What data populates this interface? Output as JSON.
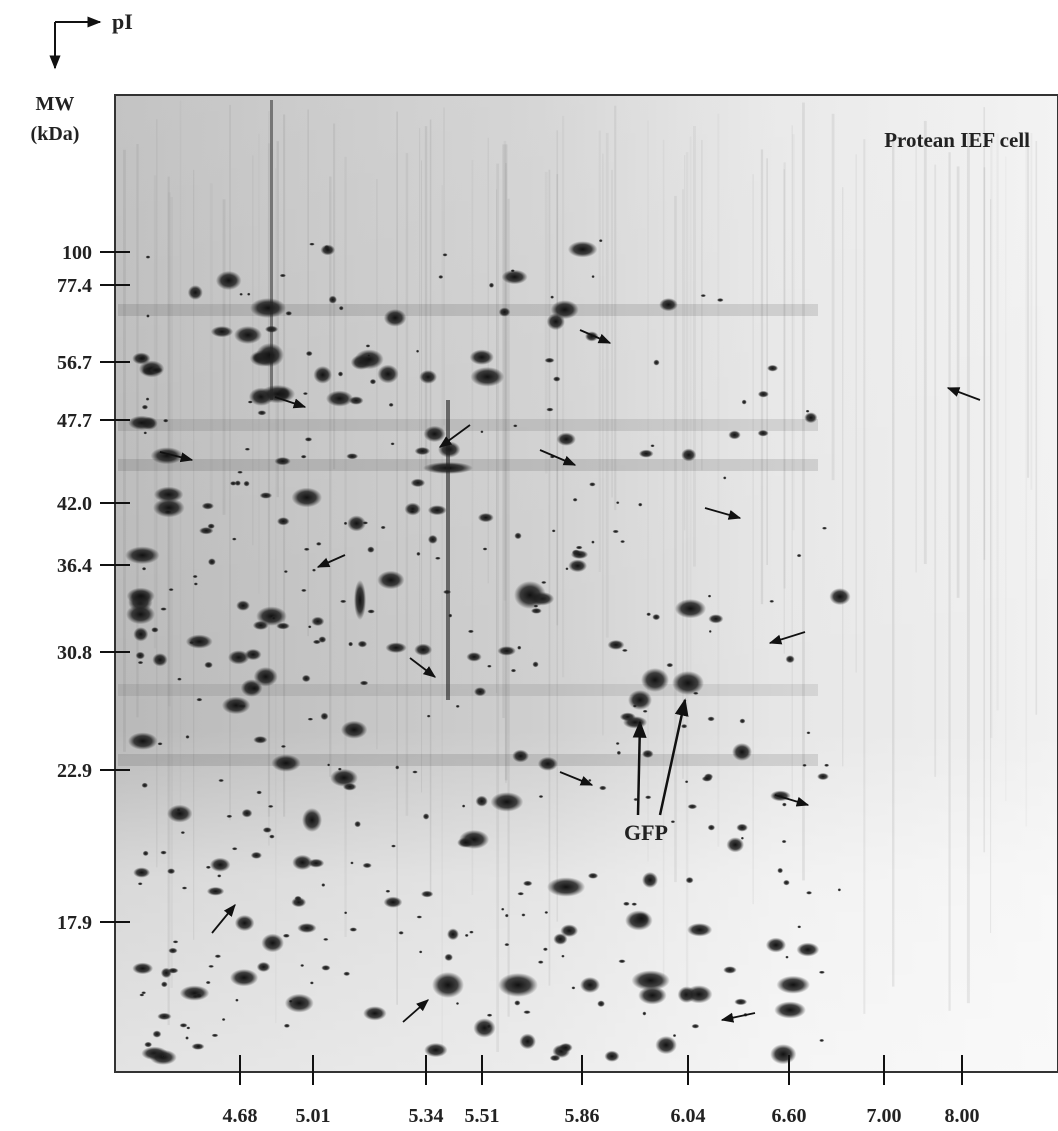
{
  "axis_corner": {
    "x_label": "pI",
    "y_label_line1": "MW",
    "y_label_line2": "(kDa)"
  },
  "gel_label": "Protean IEF cell",
  "mw_labels": [
    "100",
    "77.4",
    "56.7",
    "47.7",
    "42.0",
    "36.4",
    "30.8",
    "22.9",
    "17.9"
  ],
  "pi_labels": [
    "4.68",
    "5.01",
    "5.34",
    "5.51",
    "5.86",
    "6.04",
    "6.60",
    "7.00",
    "8.00"
  ],
  "annotation": "GFP"
}
